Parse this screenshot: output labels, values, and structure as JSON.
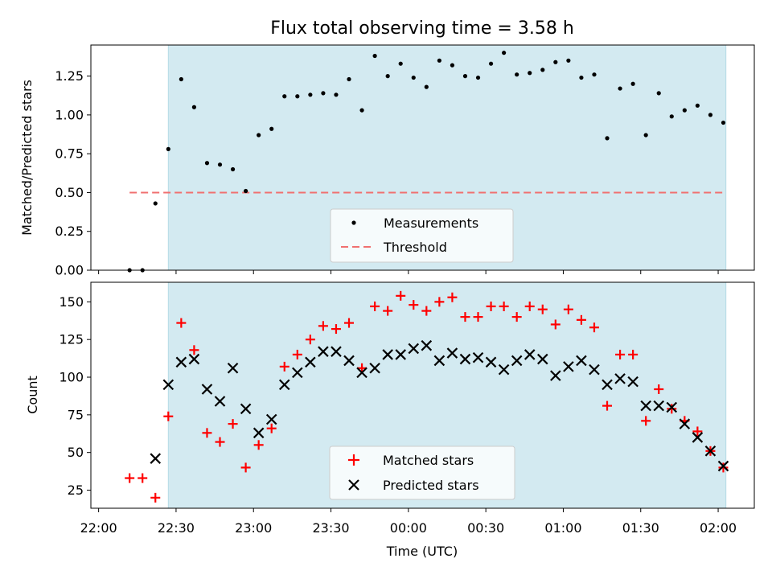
{
  "chart_data": [
    {
      "type": "scatter",
      "title": "Flux total observing time = 3.58 h",
      "xlabel": "",
      "ylabel": "Matched/Predicted stars",
      "ylim": [
        0,
        1.45
      ],
      "yticks": [
        "0.00",
        "0.25",
        "0.50",
        "0.75",
        "1.00",
        "1.25"
      ],
      "ytick_values": [
        0,
        0.25,
        0.5,
        0.75,
        1.0,
        1.25
      ],
      "xlim": [
        "21:57",
        "02:14"
      ],
      "x_unit": "HH:MM UTC",
      "observing_window": [
        "22:27",
        "02:03"
      ],
      "threshold": {
        "name": "Threshold",
        "value": 0.5,
        "x_range": [
          "22:12",
          "02:03"
        ],
        "color": "#f07070"
      },
      "legend_position": "lower-center",
      "series": [
        {
          "name": "Measurements",
          "marker": "dot",
          "color": "#000000",
          "x": [
            "22:12",
            "22:17",
            "22:22",
            "22:27",
            "22:32",
            "22:37",
            "22:42",
            "22:47",
            "22:52",
            "22:57",
            "23:02",
            "23:07",
            "23:12",
            "23:17",
            "23:22",
            "23:27",
            "23:32",
            "23:37",
            "23:42",
            "23:47",
            "23:52",
            "23:57",
            "24:02",
            "24:07",
            "24:12",
            "24:17",
            "24:22",
            "24:27",
            "24:32",
            "24:37",
            "24:42",
            "24:47",
            "24:52",
            "24:57",
            "25:02",
            "25:07",
            "25:12",
            "25:17",
            "25:22",
            "25:27",
            "25:32",
            "25:37",
            "25:42",
            "25:47",
            "25:52",
            "25:57",
            "26:02"
          ],
          "y": [
            0.0,
            0.0,
            0.43,
            0.78,
            1.23,
            1.05,
            0.69,
            0.68,
            0.65,
            0.51,
            0.87,
            0.91,
            1.12,
            1.12,
            1.13,
            1.14,
            1.13,
            1.23,
            1.03,
            1.38,
            1.25,
            1.33,
            1.24,
            1.18,
            1.35,
            1.32,
            1.25,
            1.24,
            1.33,
            1.4,
            1.26,
            1.27,
            1.29,
            1.34,
            1.35,
            1.24,
            1.26,
            0.85,
            1.17,
            1.2,
            0.87,
            1.14,
            0.99,
            1.03,
            1.06,
            1.0,
            0.95
          ]
        }
      ]
    },
    {
      "type": "scatter",
      "title": "",
      "xlabel": "Time (UTC)",
      "ylabel": "Count",
      "ylim": [
        13,
        163
      ],
      "yticks": [
        "25",
        "50",
        "75",
        "100",
        "125",
        "150"
      ],
      "ytick_values": [
        25,
        50,
        75,
        100,
        125,
        150
      ],
      "xlim": [
        "21:57",
        "02:14"
      ],
      "x_unit": "HH:MM UTC",
      "xticks": [
        "22:00",
        "22:30",
        "23:00",
        "23:30",
        "00:00",
        "00:30",
        "01:00",
        "01:30",
        "02:00"
      ],
      "observing_window": [
        "22:27",
        "02:03"
      ],
      "legend_position": "lower-center",
      "series": [
        {
          "name": "Matched stars",
          "marker": "plus",
          "color": "#ff0000",
          "x": [
            "22:12",
            "22:17",
            "22:22",
            "22:27",
            "22:32",
            "22:37",
            "22:42",
            "22:47",
            "22:52",
            "22:57",
            "23:02",
            "23:07",
            "23:12",
            "23:17",
            "23:22",
            "23:27",
            "23:32",
            "23:37",
            "23:42",
            "23:47",
            "23:52",
            "23:57",
            "24:02",
            "24:07",
            "24:12",
            "24:17",
            "24:22",
            "24:27",
            "24:32",
            "24:37",
            "24:42",
            "24:47",
            "24:52",
            "24:57",
            "25:02",
            "25:07",
            "25:12",
            "25:17",
            "25:22",
            "25:27",
            "25:32",
            "25:37",
            "25:42",
            "25:47",
            "25:52",
            "25:57",
            "26:02"
          ],
          "y": [
            33,
            33,
            20,
            74,
            136,
            118,
            63,
            57,
            69,
            40,
            55,
            66,
            107,
            115,
            125,
            134,
            132,
            136,
            106,
            147,
            144,
            154,
            148,
            144,
            150,
            153,
            140,
            140,
            147,
            147,
            140,
            147,
            145,
            135,
            145,
            138,
            133,
            81,
            115,
            115,
            71,
            92,
            79,
            71,
            64,
            51,
            40
          ]
        },
        {
          "name": "Predicted stars",
          "marker": "x",
          "color": "#000000",
          "x": [
            "22:22",
            "22:27",
            "22:32",
            "22:37",
            "22:42",
            "22:47",
            "22:52",
            "22:57",
            "23:02",
            "23:07",
            "23:12",
            "23:17",
            "23:22",
            "23:27",
            "23:32",
            "23:37",
            "23:42",
            "23:47",
            "23:52",
            "23:57",
            "24:02",
            "24:07",
            "24:12",
            "24:17",
            "24:22",
            "24:27",
            "24:32",
            "24:37",
            "24:42",
            "24:47",
            "24:52",
            "24:57",
            "25:02",
            "25:07",
            "25:12",
            "25:17",
            "25:22",
            "25:27",
            "25:32",
            "25:37",
            "25:42",
            "25:47",
            "25:52",
            "25:57",
            "26:02"
          ],
          "y": [
            46,
            95,
            110,
            112,
            92,
            84,
            106,
            79,
            63,
            72,
            95,
            103,
            110,
            117,
            117,
            111,
            103,
            106,
            115,
            115,
            119,
            121,
            111,
            116,
            112,
            113,
            110,
            105,
            111,
            115,
            112,
            101,
            107,
            111,
            105,
            95,
            99,
            97,
            81,
            81,
            80,
            69,
            60,
            51,
            41
          ]
        }
      ]
    }
  ]
}
